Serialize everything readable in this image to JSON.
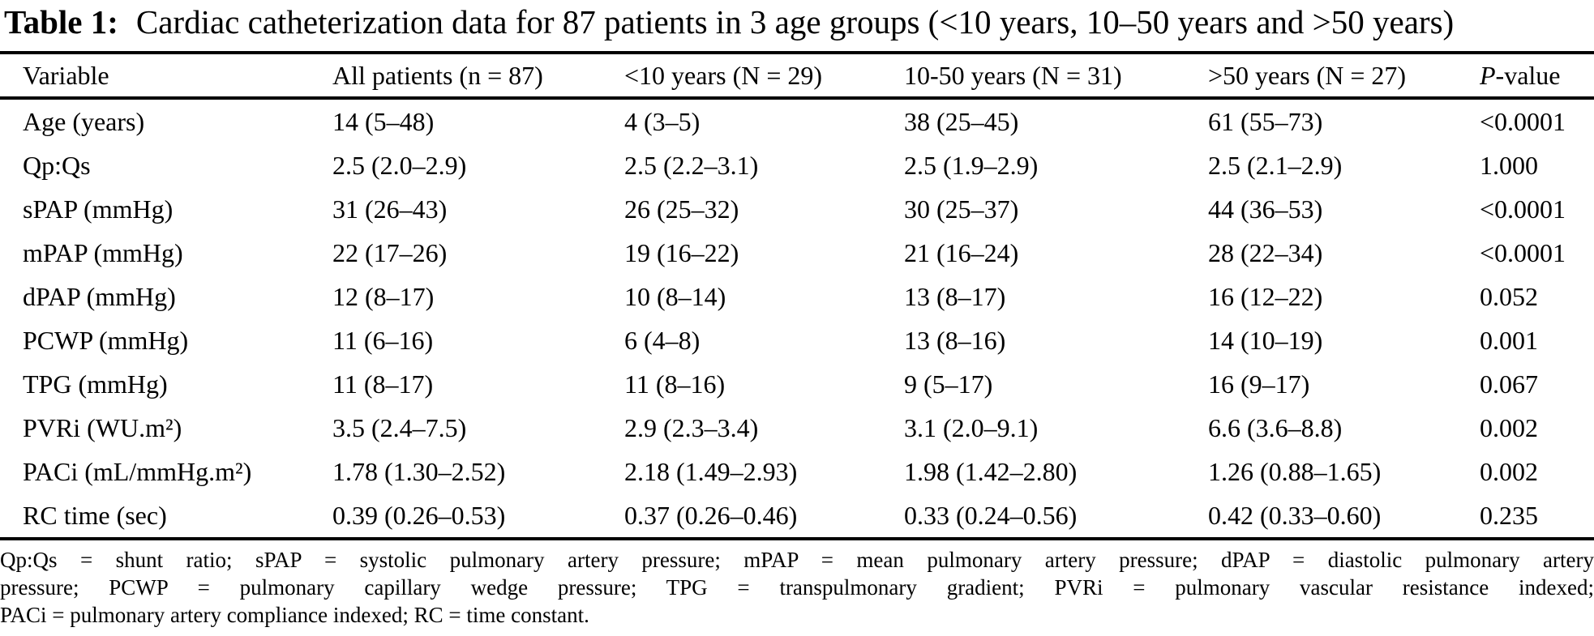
{
  "caption": {
    "label": "Table 1:",
    "text": "Cardiac catheterization data for 87 patients in 3 age groups (<10 years, 10–50 years and >50 years)"
  },
  "table": {
    "columns": [
      "Variable",
      "All patients (n = 87)",
      "<10 years (N = 29)",
      "10-50 years (N = 31)",
      ">50 years (N = 27)"
    ],
    "pvalue_header": {
      "italic": "P",
      "rest": "-value"
    },
    "rows": [
      [
        "Age (years)",
        "14 (5–48)",
        "4 (3–5)",
        "38 (25–45)",
        "61 (55–73)",
        "<0.0001"
      ],
      [
        "Qp:Qs",
        "2.5 (2.0–2.9)",
        "2.5 (2.2–3.1)",
        "2.5 (1.9–2.9)",
        "2.5 (2.1–2.9)",
        "1.000"
      ],
      [
        "sPAP (mmHg)",
        "31 (26–43)",
        "26 (25–32)",
        "30 (25–37)",
        "44 (36–53)",
        "<0.0001"
      ],
      [
        "mPAP (mmHg)",
        "22 (17–26)",
        "19 (16–22)",
        "21 (16–24)",
        "28 (22–34)",
        "<0.0001"
      ],
      [
        "dPAP (mmHg)",
        "12 (8–17)",
        "10 (8–14)",
        "13 (8–17)",
        "16 (12–22)",
        "0.052"
      ],
      [
        "PCWP (mmHg)",
        "11 (6–16)",
        "6 (4–8)",
        "13 (8–16)",
        "14 (10–19)",
        "0.001"
      ],
      [
        "TPG (mmHg)",
        "11 (8–17)",
        "11 (8–16)",
        "9 (5–17)",
        "16 (9–17)",
        "0.067"
      ],
      [
        "PVRi (WU.m²)",
        "3.5 (2.4–7.5)",
        "2.9 (2.3–3.4)",
        "3.1 (2.0–9.1)",
        "6.6 (3.6–8.8)",
        "0.002"
      ],
      [
        "PACi (mL/mmHg.m²)",
        "1.78 (1.30–2.52)",
        "2.18 (1.49–2.93)",
        "1.98 (1.42–2.80)",
        "1.26 (0.88–1.65)",
        "0.002"
      ],
      [
        "RC time (sec)",
        "0.39 (0.26–0.53)",
        "0.37 (0.26–0.46)",
        "0.33 (0.24–0.56)",
        "0.42 (0.33–0.60)",
        "0.235"
      ]
    ]
  },
  "footnote": {
    "lines": [
      "Qp:Qs = shunt ratio; sPAP = systolic pulmonary artery pressure; mPAP = mean pulmonary artery pressure; dPAP = diastolic pulmonary artery",
      "pressure; PCWP = pulmonary capillary wedge pressure; TPG = transpulmonary gradient; PVRi = pulmonary vascular resistance indexed;",
      "PACi = pulmonary artery compliance indexed; RC = time constant."
    ]
  },
  "colors": {
    "text": "#000000",
    "background": "#ffffff",
    "rule": "#000000"
  }
}
